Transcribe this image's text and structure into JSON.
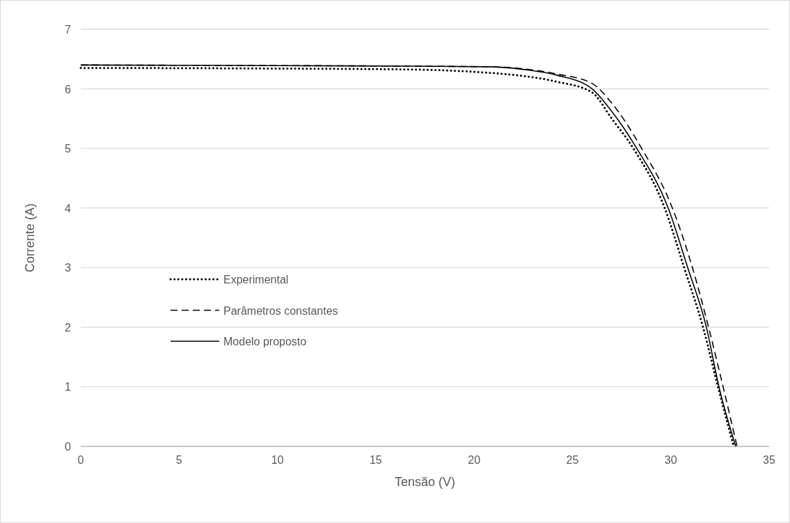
{
  "chart_data": {
    "type": "line",
    "xlabel": "Tensão (V)",
    "ylabel": "Corrente (A)",
    "xlim": [
      0,
      35
    ],
    "xticks": [
      0,
      5,
      10,
      15,
      20,
      25,
      30,
      35
    ],
    "ylim": [
      0,
      7
    ],
    "yticks": [
      0,
      1,
      2,
      3,
      4,
      5,
      6,
      7
    ],
    "grid": "y",
    "legend": "left",
    "marker": "none",
    "series": [
      {
        "name": "Experimental",
        "color": "#000000",
        "line_style": "dotted",
        "x": [
          0,
          10,
          15,
          17.4,
          20.7,
          22.4,
          24.2,
          26,
          27,
          28.1,
          29.69,
          30.68,
          31.64,
          32.4,
          33.2
        ],
        "values": [
          6.35,
          6.34,
          6.33,
          6.32,
          6.27,
          6.22,
          6.12,
          5.94,
          5.5,
          5,
          4,
          3,
          2,
          1,
          0
        ]
      },
      {
        "name": "Parâmetros constantes",
        "color": "#000000",
        "line_style": "dashed",
        "x": [
          0,
          10,
          17,
          20.7,
          22.4,
          24.2,
          26,
          27,
          28.52,
          30.08,
          31.1,
          31.92,
          32.66,
          33.37
        ],
        "values": [
          6.4,
          6.39,
          6.38,
          6.37,
          6.34,
          6.25,
          6.09,
          5.76,
          5,
          4,
          3,
          2,
          1,
          0
        ]
      },
      {
        "name": "Modelo proposto",
        "color": "#000000",
        "line_style": "solid",
        "x": [
          0,
          10,
          17,
          20.7,
          22.4,
          24.2,
          26,
          27,
          28.27,
          29.87,
          30.86,
          31.81,
          32.45,
          33.3
        ],
        "values": [
          6.4,
          6.39,
          6.38,
          6.37,
          6.33,
          6.23,
          6,
          5.62,
          5,
          4,
          3,
          2,
          1,
          0
        ]
      }
    ]
  }
}
